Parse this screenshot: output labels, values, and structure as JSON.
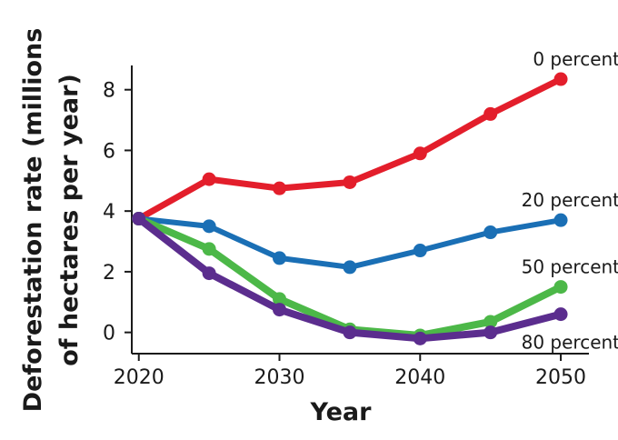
{
  "chart_data": {
    "type": "line",
    "title": "",
    "xlabel": "Year",
    "ylabel": "Deforestation rate (millions of hectares per year)",
    "ylabel_lines": [
      "Deforestation rate (millions",
      "of hectares per year)"
    ],
    "x": [
      2020,
      2025,
      2030,
      2035,
      2040,
      2045,
      2050
    ],
    "xticks": [
      2020,
      2030,
      2040,
      2050
    ],
    "yticks": [
      0,
      2,
      4,
      6,
      8
    ],
    "xlim": [
      2019.5,
      2052
    ],
    "ylim": [
      -0.7,
      8.8
    ],
    "grid": false,
    "legend": "inline labels at line ends",
    "series": [
      {
        "name": "0 percent",
        "color": "#e31e2b",
        "values": [
          3.75,
          5.05,
          4.75,
          4.95,
          5.9,
          7.2,
          8.35
        ]
      },
      {
        "name": "20 percent",
        "color": "#1a6fb5",
        "values": [
          3.75,
          3.5,
          2.45,
          2.15,
          2.7,
          3.3,
          3.7
        ]
      },
      {
        "name": "50 percent",
        "color": "#4cb848",
        "values": [
          3.75,
          2.75,
          1.1,
          0.1,
          -0.1,
          0.35,
          1.5
        ]
      },
      {
        "name": "80 percent",
        "color": "#5b2d8e",
        "values": [
          3.75,
          1.95,
          0.75,
          0.0,
          -0.2,
          0.0,
          0.6
        ]
      }
    ]
  }
}
